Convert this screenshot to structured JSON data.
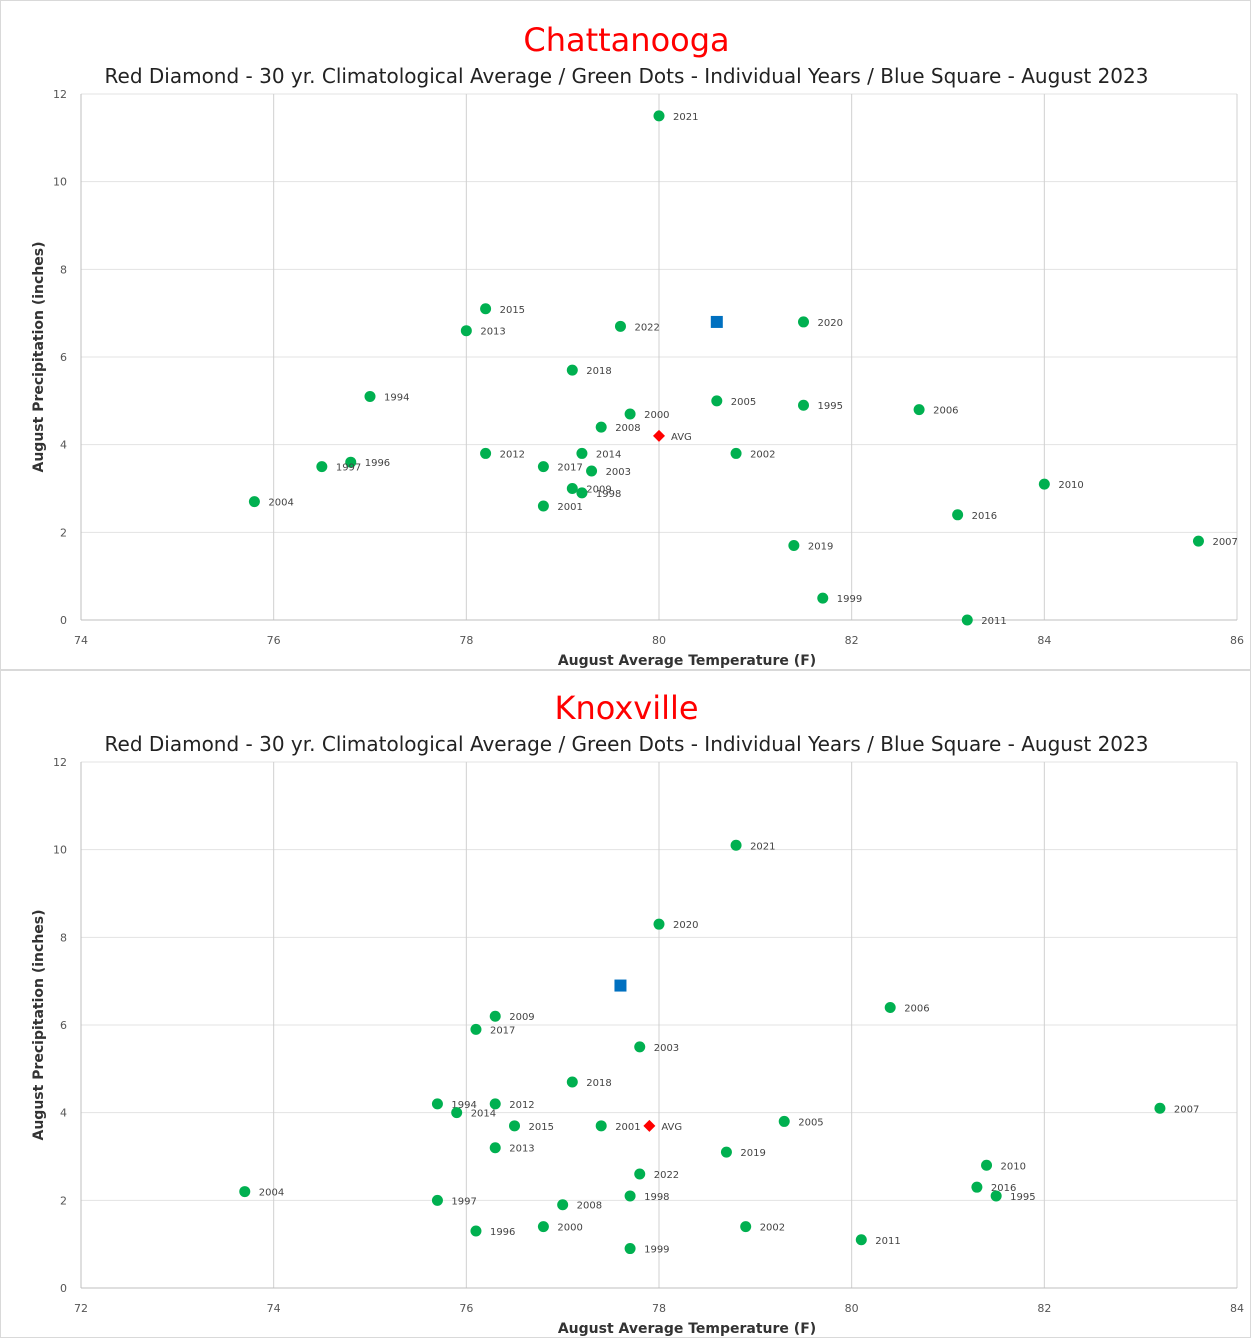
{
  "chart_data": [
    {
      "type": "scatter",
      "title": "Chattanooga",
      "subtitle": "Red Diamond - 30 yr. Climatological Average / Green Dots - Individual Years / Blue Square - August 2023",
      "xlabel": "August Average Temperature (F)",
      "ylabel": "August Precipitation (inches)",
      "xlim": [
        74,
        86
      ],
      "ylim": [
        0,
        12
      ],
      "xticks": [
        74,
        76,
        78,
        80,
        82,
        84,
        86
      ],
      "yticks": [
        0,
        2,
        4,
        6,
        8,
        10,
        12
      ],
      "grid": true,
      "colors": {
        "title": "#ff0000",
        "years": "#00b050",
        "average": "#ff0000",
        "current": "#0070c0"
      },
      "points": [
        {
          "label": "2021",
          "x": 80.0,
          "y": 11.5
        },
        {
          "label": "2015",
          "x": 78.2,
          "y": 7.1
        },
        {
          "label": "2013",
          "x": 78.0,
          "y": 6.6
        },
        {
          "label": "2022",
          "x": 79.6,
          "y": 6.7
        },
        {
          "label": "2020",
          "x": 81.5,
          "y": 6.8
        },
        {
          "label": "2018",
          "x": 79.1,
          "y": 5.7
        },
        {
          "label": "1994",
          "x": 77.0,
          "y": 5.1
        },
        {
          "label": "2005",
          "x": 80.6,
          "y": 5.0
        },
        {
          "label": "1995",
          "x": 81.5,
          "y": 4.9
        },
        {
          "label": "2006",
          "x": 82.7,
          "y": 4.8
        },
        {
          "label": "2000",
          "x": 79.7,
          "y": 4.7
        },
        {
          "label": "2008",
          "x": 79.4,
          "y": 4.4
        },
        {
          "label": "2012",
          "x": 78.2,
          "y": 3.8
        },
        {
          "label": "2014",
          "x": 79.2,
          "y": 3.8
        },
        {
          "label": "2002",
          "x": 80.8,
          "y": 3.8
        },
        {
          "label": "1996",
          "x": 76.8,
          "y": 3.6
        },
        {
          "label": "1997",
          "x": 76.5,
          "y": 3.5
        },
        {
          "label": "2017",
          "x": 78.8,
          "y": 3.5
        },
        {
          "label": "2003",
          "x": 79.3,
          "y": 3.4
        },
        {
          "label": "2010",
          "x": 84.0,
          "y": 3.1
        },
        {
          "label": "2009",
          "x": 79.1,
          "y": 3.0
        },
        {
          "label": "1998",
          "x": 79.2,
          "y": 2.9
        },
        {
          "label": "2004",
          "x": 75.8,
          "y": 2.7
        },
        {
          "label": "2001",
          "x": 78.8,
          "y": 2.6
        },
        {
          "label": "2016",
          "x": 83.1,
          "y": 2.4
        },
        {
          "label": "2007",
          "x": 85.6,
          "y": 1.8
        },
        {
          "label": "2019",
          "x": 81.4,
          "y": 1.7
        },
        {
          "label": "1999",
          "x": 81.7,
          "y": 0.5
        },
        {
          "label": "2011",
          "x": 83.2,
          "y": 0.0
        }
      ],
      "average": {
        "label": "AVG",
        "x": 80.0,
        "y": 4.2
      },
      "current": {
        "x": 80.6,
        "y": 6.8
      }
    },
    {
      "type": "scatter",
      "title": "Knoxville",
      "subtitle": "Red Diamond - 30 yr. Climatological Average / Green Dots - Individual Years / Blue Square - August 2023",
      "xlabel": "August Average Temperature (F)",
      "ylabel": "August Precipitation (inches)",
      "xlim": [
        72,
        84
      ],
      "ylim": [
        0,
        12
      ],
      "xticks": [
        72,
        74,
        76,
        78,
        80,
        82,
        84
      ],
      "yticks": [
        0,
        2,
        4,
        6,
        8,
        10,
        12
      ],
      "grid": true,
      "colors": {
        "title": "#ff0000",
        "years": "#00b050",
        "average": "#ff0000",
        "current": "#0070c0"
      },
      "points": [
        {
          "label": "2021",
          "x": 78.8,
          "y": 10.1
        },
        {
          "label": "2020",
          "x": 78.0,
          "y": 8.3
        },
        {
          "label": "2006",
          "x": 80.4,
          "y": 6.4
        },
        {
          "label": "2009",
          "x": 76.3,
          "y": 6.2
        },
        {
          "label": "2017",
          "x": 76.1,
          "y": 5.9
        },
        {
          "label": "2003",
          "x": 77.8,
          "y": 5.5
        },
        {
          "label": "2018",
          "x": 77.1,
          "y": 4.7
        },
        {
          "label": "1994",
          "x": 75.7,
          "y": 4.2
        },
        {
          "label": "2012",
          "x": 76.3,
          "y": 4.2
        },
        {
          "label": "2007",
          "x": 83.2,
          "y": 4.1
        },
        {
          "label": "2014",
          "x": 75.9,
          "y": 4.0
        },
        {
          "label": "2005",
          "x": 79.3,
          "y": 3.8
        },
        {
          "label": "2001",
          "x": 77.4,
          "y": 3.7
        },
        {
          "label": "2015",
          "x": 76.5,
          "y": 3.7
        },
        {
          "label": "2013",
          "x": 76.3,
          "y": 3.2
        },
        {
          "label": "2019",
          "x": 78.7,
          "y": 3.1
        },
        {
          "label": "2010",
          "x": 81.4,
          "y": 2.8
        },
        {
          "label": "2022",
          "x": 77.8,
          "y": 2.6
        },
        {
          "label": "2016",
          "x": 81.3,
          "y": 2.3
        },
        {
          "label": "2004",
          "x": 73.7,
          "y": 2.2
        },
        {
          "label": "1995",
          "x": 81.5,
          "y": 2.1
        },
        {
          "label": "1998",
          "x": 77.7,
          "y": 2.1
        },
        {
          "label": "1997",
          "x": 75.7,
          "y": 2.0
        },
        {
          "label": "2008",
          "x": 77.0,
          "y": 1.9
        },
        {
          "label": "2000",
          "x": 76.8,
          "y": 1.4
        },
        {
          "label": "2002",
          "x": 78.9,
          "y": 1.4
        },
        {
          "label": "1996",
          "x": 76.1,
          "y": 1.3
        },
        {
          "label": "2011",
          "x": 80.1,
          "y": 1.1
        },
        {
          "label": "1999",
          "x": 77.7,
          "y": 0.9
        }
      ],
      "average": {
        "label": "AVG",
        "x": 77.9,
        "y": 3.7
      },
      "current": {
        "x": 77.6,
        "y": 6.9
      }
    }
  ]
}
